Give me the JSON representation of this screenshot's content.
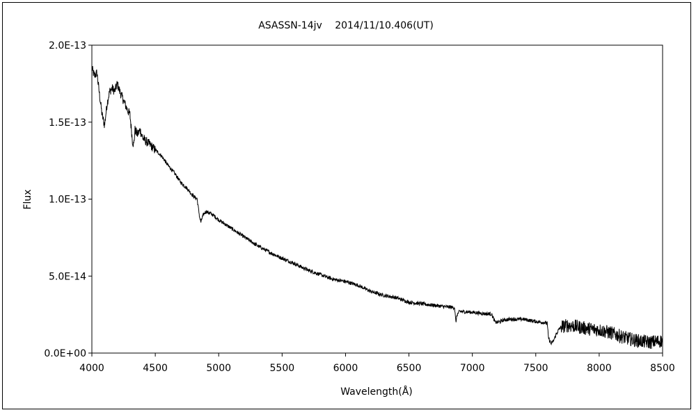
{
  "chart_data": {
    "type": "line",
    "title": "ASASSN-14jv　 2014/11/10.406(UT)",
    "xlabel": "Wavelength(Å)",
    "ylabel": "Flux",
    "xlim": [
      4000,
      8500
    ],
    "ylim": [
      0,
      2e-13
    ],
    "xticks": [
      4000,
      4500,
      5000,
      5500,
      6000,
      6500,
      7000,
      7500,
      8000,
      8500
    ],
    "xtick_labels": [
      "4000",
      "4500",
      "5000",
      "5500",
      "6000",
      "6500",
      "7000",
      "7500",
      "8000",
      "8500"
    ],
    "yticks": [
      0,
      5e-14,
      1e-13,
      1.5e-13,
      2e-13
    ],
    "ytick_labels": [
      "0.0E+00",
      "5.0E-14",
      "1.0E-13",
      "1.5E-13",
      "2.0E-13"
    ],
    "grid": false,
    "line_color": "#000000",
    "series": [
      {
        "x": [
          4000,
          4020,
          4040,
          4060,
          4080,
          4100,
          4120,
          4140,
          4160,
          4180,
          4200,
          4220,
          4240,
          4260,
          4280,
          4300,
          4320,
          4330,
          4340,
          4360,
          4380,
          4400,
          4420,
          4450,
          4500,
          4550,
          4600,
          4650,
          4700,
          4750,
          4800,
          4830,
          4850,
          4860,
          4870,
          4880,
          4900,
          4950,
          5000,
          5100,
          5200,
          5300,
          5400,
          5500,
          5600,
          5700,
          5800,
          5900,
          6000,
          6100,
          6200,
          6300,
          6400,
          6500,
          6600,
          6700,
          6800,
          6860,
          6870,
          6880,
          6900,
          7000,
          7100,
          7150,
          7180,
          7200,
          7250,
          7300,
          7400,
          7500,
          7550,
          7590,
          7600,
          7620,
          7640,
          7660,
          7680,
          7700,
          7750,
          7800,
          7900,
          8000,
          8100,
          8200,
          8300,
          8400,
          8500
        ],
        "y": [
          1.85e-13,
          1.8e-13,
          1.82e-13,
          1.68e-13,
          1.55e-13,
          1.48e-13,
          1.62e-13,
          1.7e-13,
          1.72e-13,
          1.7e-13,
          1.75e-13,
          1.7e-13,
          1.66e-13,
          1.62e-13,
          1.58e-13,
          1.55e-13,
          1.38e-13,
          1.35e-13,
          1.45e-13,
          1.42e-13,
          1.45e-13,
          1.4e-13,
          1.38e-13,
          1.36e-13,
          1.32e-13,
          1.28e-13,
          1.22e-13,
          1.17e-13,
          1.11e-13,
          1.07e-13,
          1.02e-13,
          1e-13,
          8.8e-14,
          8.5e-14,
          8.8e-14,
          9e-14,
          9.2e-14,
          9e-14,
          8.65e-14,
          8.1e-14,
          7.55e-14,
          7e-14,
          6.55e-14,
          6.15e-14,
          5.8e-14,
          5.4e-14,
          5.1e-14,
          4.8e-14,
          4.65e-14,
          4.4e-14,
          4e-14,
          3.75e-14,
          3.6e-14,
          3.3e-14,
          3.2e-14,
          3.1e-14,
          3e-14,
          2.95e-14,
          2e-14,
          2.5e-14,
          2.7e-14,
          2.65e-14,
          2.55e-14,
          2.55e-14,
          2e-14,
          2e-14,
          2.15e-14,
          2.2e-14,
          2.2e-14,
          2.05e-14,
          2e-14,
          1.95e-14,
          1e-14,
          6e-15,
          8e-15,
          1.2e-14,
          1.5e-14,
          1.7e-14,
          1.8e-14,
          1.75e-14,
          1.6e-14,
          1.5e-14,
          1.3e-14,
          1e-14,
          8e-15,
          7e-15,
          8e-15
        ]
      }
    ]
  }
}
